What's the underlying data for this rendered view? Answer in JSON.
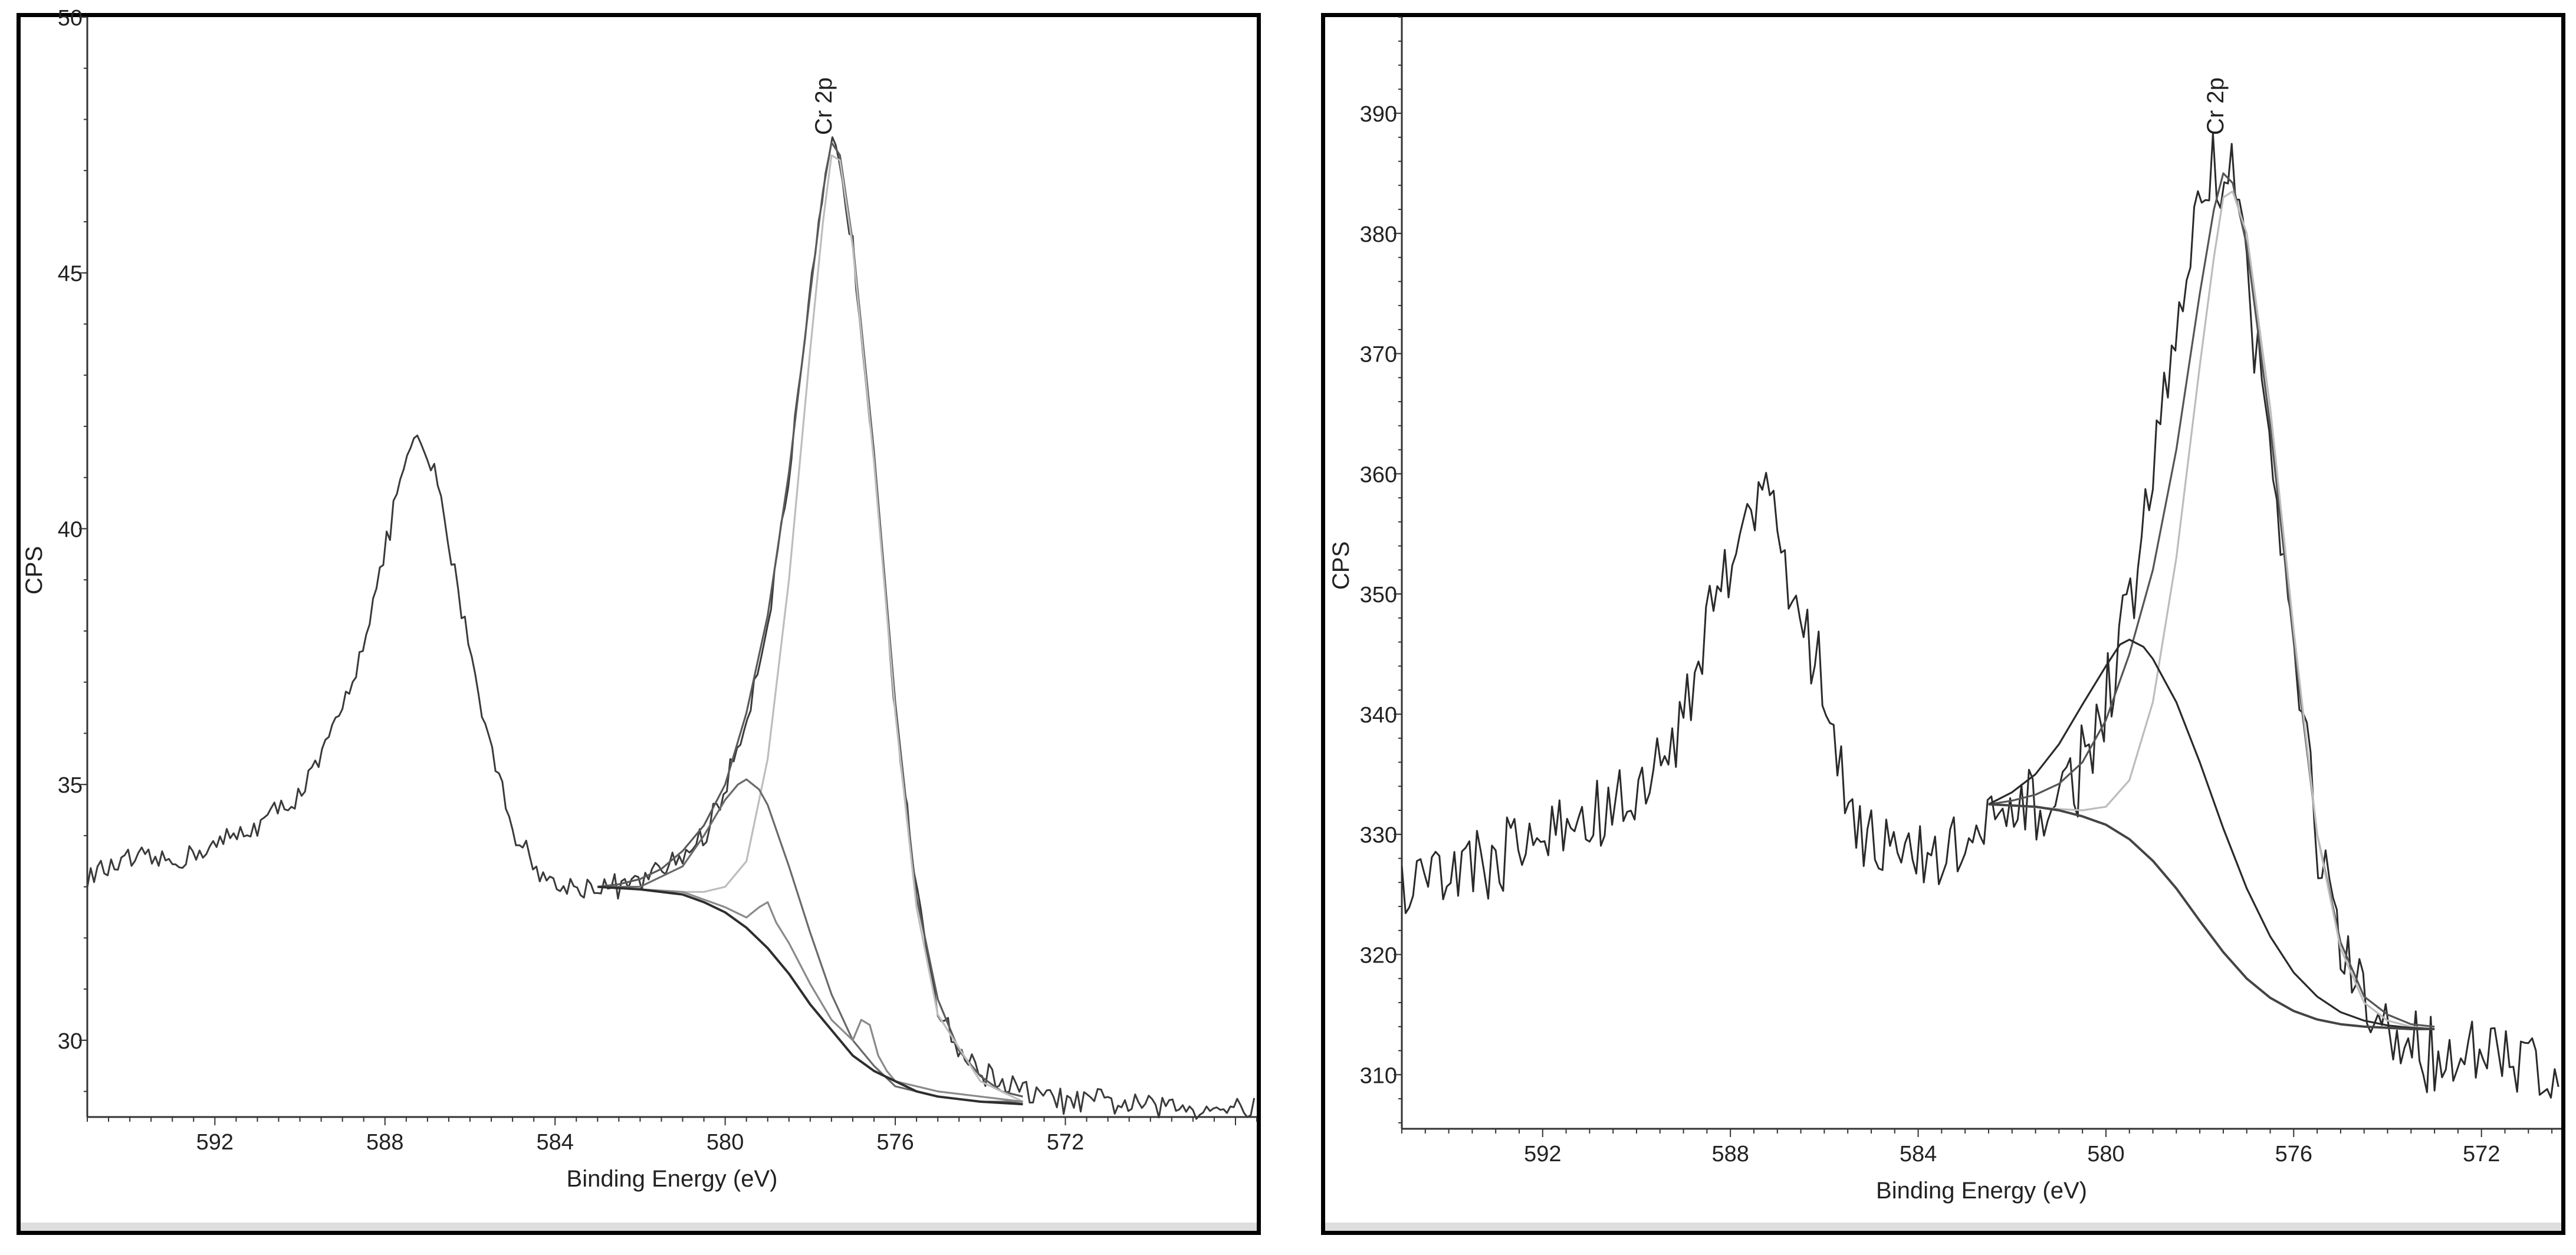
{
  "chart_data": [
    {
      "type": "line",
      "xlabel": "Binding Energy (eV)",
      "ylabel": "CPS",
      "x_reversed": true,
      "xlim": [
        595,
        567.5
      ],
      "ylim": [
        28.5,
        50
      ],
      "xticks": [
        592,
        588,
        584,
        580,
        576,
        572
      ],
      "yticks": [
        30,
        35,
        40,
        45,
        50
      ],
      "annotations": [
        {
          "text": "Cr 2p",
          "x": 577.5
        }
      ],
      "series": [
        {
          "role": "spectrum",
          "color": "#3a3a3a",
          "noise": 0.22,
          "x": [
            595,
            594,
            593,
            592,
            591,
            590,
            589.5,
            589,
            588.5,
            588,
            587.7,
            587.4,
            587.2,
            586.8,
            586.2,
            585.6,
            585.0,
            584.5,
            584.0,
            583.5,
            583.0,
            582.5,
            582.0,
            581.5,
            581.0,
            580.5,
            580.0,
            579.5,
            579.0,
            578.5,
            578.0,
            577.7,
            577.5,
            577.3,
            577.0,
            576.5,
            576.0,
            575.5,
            575.0,
            574.5,
            574.0,
            573.0,
            572.0,
            571.0,
            570.0,
            569.0,
            568.0,
            567.5
          ],
          "y": [
            33.2,
            33.5,
            33.5,
            33.8,
            34.2,
            34.8,
            35.5,
            36.5,
            37.8,
            39.5,
            40.8,
            41.5,
            41.7,
            41.0,
            38.5,
            36.0,
            34.2,
            33.4,
            33.0,
            33.0,
            33.0,
            33.0,
            33.1,
            33.3,
            33.6,
            34.0,
            34.9,
            36.3,
            38.2,
            41.0,
            44.5,
            46.5,
            47.5,
            47.2,
            45.5,
            41.5,
            36.5,
            32.8,
            30.7,
            29.8,
            29.4,
            29.0,
            28.8,
            28.8,
            28.7,
            28.7,
            28.7,
            28.7
          ]
        },
        {
          "role": "envelope",
          "color": "#5a5a5a",
          "x": [
            583,
            582.5,
            582,
            581.5,
            581,
            580.5,
            580,
            579.5,
            579,
            578.5,
            578,
            577.7,
            577.5,
            577.3,
            577,
            576.5,
            576,
            575.5,
            575,
            574.5,
            574,
            573.5,
            573
          ],
          "y": [
            33.0,
            33.05,
            33.15,
            33.35,
            33.7,
            34.2,
            35.0,
            36.4,
            38.3,
            41.1,
            44.6,
            46.6,
            47.55,
            47.3,
            45.6,
            41.5,
            36.6,
            32.8,
            30.8,
            29.8,
            29.3,
            29.0,
            28.9
          ]
        },
        {
          "role": "component-1",
          "color": "#bdbdbd",
          "x": [
            583,
            582,
            581,
            580.5,
            580,
            579.5,
            579,
            578.5,
            578,
            577.7,
            577.5,
            577.3,
            577,
            576.5,
            576,
            575.5,
            575,
            574,
            573
          ],
          "y": [
            33.0,
            32.95,
            32.9,
            32.9,
            33.0,
            33.5,
            35.5,
            39.0,
            43.5,
            46.0,
            47.3,
            47.2,
            45.5,
            41.3,
            36.4,
            32.6,
            30.5,
            29.2,
            28.8
          ]
        },
        {
          "role": "component-2",
          "color": "#6a6a6a",
          "x": [
            583,
            582,
            581,
            580.5,
            580,
            579.7,
            579.5,
            579.2,
            579,
            578.5,
            578,
            577.5,
            577,
            576.5,
            576,
            575,
            574,
            573
          ],
          "y": [
            33.0,
            33.0,
            33.4,
            34.0,
            34.7,
            35.0,
            35.1,
            34.9,
            34.6,
            33.4,
            32.1,
            30.9,
            30.0,
            29.5,
            29.1,
            28.9,
            28.8,
            28.8
          ]
        },
        {
          "role": "component-3",
          "color": "#8a8a8a",
          "x": [
            583,
            581,
            580,
            579.5,
            579.2,
            579,
            578.8,
            578.5,
            578,
            577.5,
            577,
            576.8,
            576.6,
            576.4,
            576.2,
            576,
            575,
            574,
            573
          ],
          "y": [
            33.0,
            32.9,
            32.6,
            32.4,
            32.6,
            32.7,
            32.3,
            31.9,
            31.1,
            30.4,
            30.0,
            30.4,
            30.3,
            29.7,
            29.4,
            29.2,
            29.0,
            28.9,
            28.8
          ]
        },
        {
          "role": "background",
          "color": "#2e2e2e",
          "x": [
            583,
            582,
            581,
            580.5,
            580,
            579.5,
            579,
            578.5,
            578,
            577.5,
            577,
            576.5,
            576,
            575.5,
            575,
            574,
            573
          ],
          "y": [
            33.0,
            32.95,
            32.85,
            32.7,
            32.5,
            32.2,
            31.8,
            31.3,
            30.7,
            30.2,
            29.7,
            29.4,
            29.2,
            29.0,
            28.9,
            28.8,
            28.75
          ]
        }
      ]
    },
    {
      "type": "line",
      "xlabel": "Binding Energy (eV)",
      "ylabel": "CPS",
      "x_reversed": true,
      "xlim": [
        595,
        570.3
      ],
      "ylim": [
        305.5,
        398
      ],
      "xticks": [
        592,
        588,
        584,
        580,
        576,
        572
      ],
      "yticks": [
        310,
        320,
        330,
        340,
        350,
        360,
        370,
        380,
        390
      ],
      "annotations": [
        {
          "text": "Cr 2p",
          "x": 577.5
        }
      ],
      "series": [
        {
          "role": "spectrum",
          "color": "#2a2a2a",
          "noise": 3.2,
          "x": [
            595,
            594,
            593,
            592,
            591,
            590,
            589.5,
            589,
            588.5,
            588,
            587.7,
            587.4,
            587.1,
            586.8,
            586.4,
            586.0,
            585.6,
            585.2,
            584.8,
            584.4,
            584.0,
            583.5,
            583.0,
            582.5,
            582.0,
            581.5,
            581.0,
            580.5,
            580.0,
            579.5,
            579.0,
            578.5,
            578.0,
            577.8,
            577.5,
            577.2,
            577.0,
            576.5,
            576.0,
            575.5,
            575.0,
            574.5,
            574.0,
            573.0,
            572.0,
            571.0,
            570.3
          ],
          "y": [
            326,
            327,
            328,
            330,
            331,
            333,
            336,
            340,
            347,
            354,
            358,
            357,
            358,
            352,
            347,
            342,
            335,
            331,
            329,
            328,
            328,
            328,
            329,
            330,
            331,
            332,
            333,
            336,
            341,
            348,
            360,
            372,
            382,
            385,
            386,
            383,
            377,
            362,
            345,
            330,
            320,
            315,
            313,
            312,
            311,
            311,
            311
          ]
        },
        {
          "role": "envelope",
          "color": "#555555",
          "x": [
            582.5,
            582,
            581.5,
            581,
            580.5,
            580,
            579.5,
            579,
            578.5,
            578,
            577.7,
            577.5,
            577.3,
            577,
            576.5,
            576,
            575.5,
            575,
            574.5,
            574,
            573.5,
            573
          ],
          "y": [
            332.5,
            332.8,
            333.3,
            334.2,
            336.0,
            339.5,
            345.0,
            352.0,
            362.0,
            375.0,
            382.0,
            385.0,
            384.2,
            379.0,
            364.0,
            346.0,
            330.0,
            321.0,
            316.5,
            315.0,
            314.2,
            314.0
          ]
        },
        {
          "role": "component-1",
          "color": "#bcbcbc",
          "x": [
            582.5,
            582,
            581,
            580.5,
            580,
            579.5,
            579,
            578.5,
            578,
            577.7,
            577.5,
            577.3,
            577,
            576.5,
            576,
            575.5,
            575,
            574.5,
            574,
            573.5,
            573
          ],
          "y": [
            332.5,
            332.4,
            332.1,
            332.0,
            332.3,
            334.5,
            341.0,
            353.0,
            369.0,
            378.0,
            383.0,
            383.5,
            380.0,
            365.5,
            347.0,
            330.0,
            320.5,
            316.0,
            314.5,
            314.0,
            313.8
          ]
        },
        {
          "role": "component-2",
          "color": "#2a2a2a",
          "x": [
            582.5,
            582,
            581.5,
            581,
            580.5,
            580,
            579.7,
            579.5,
            579.2,
            579,
            578.5,
            578,
            577.5,
            577,
            576.5,
            576,
            575.5,
            575,
            574.5,
            574,
            573.5,
            573
          ],
          "y": [
            332.5,
            333.5,
            335.0,
            337.5,
            340.8,
            344.0,
            345.8,
            346.2,
            345.6,
            344.6,
            341.0,
            336.0,
            330.5,
            325.5,
            321.5,
            318.5,
            316.5,
            315.2,
            314.5,
            314.1,
            313.9,
            313.8
          ]
        },
        {
          "role": "background",
          "color": "#444444",
          "x": [
            582.5,
            582,
            581.5,
            581,
            580.5,
            580,
            579.5,
            579,
            578.5,
            578,
            577.5,
            577,
            576.5,
            576,
            575.5,
            575,
            574.5,
            574,
            573.5,
            573
          ],
          "y": [
            332.5,
            332.4,
            332.3,
            332.0,
            331.5,
            330.8,
            329.6,
            327.8,
            325.5,
            322.8,
            320.2,
            318.0,
            316.4,
            315.3,
            314.6,
            314.2,
            314.0,
            313.9,
            313.8,
            313.8
          ]
        }
      ]
    }
  ]
}
